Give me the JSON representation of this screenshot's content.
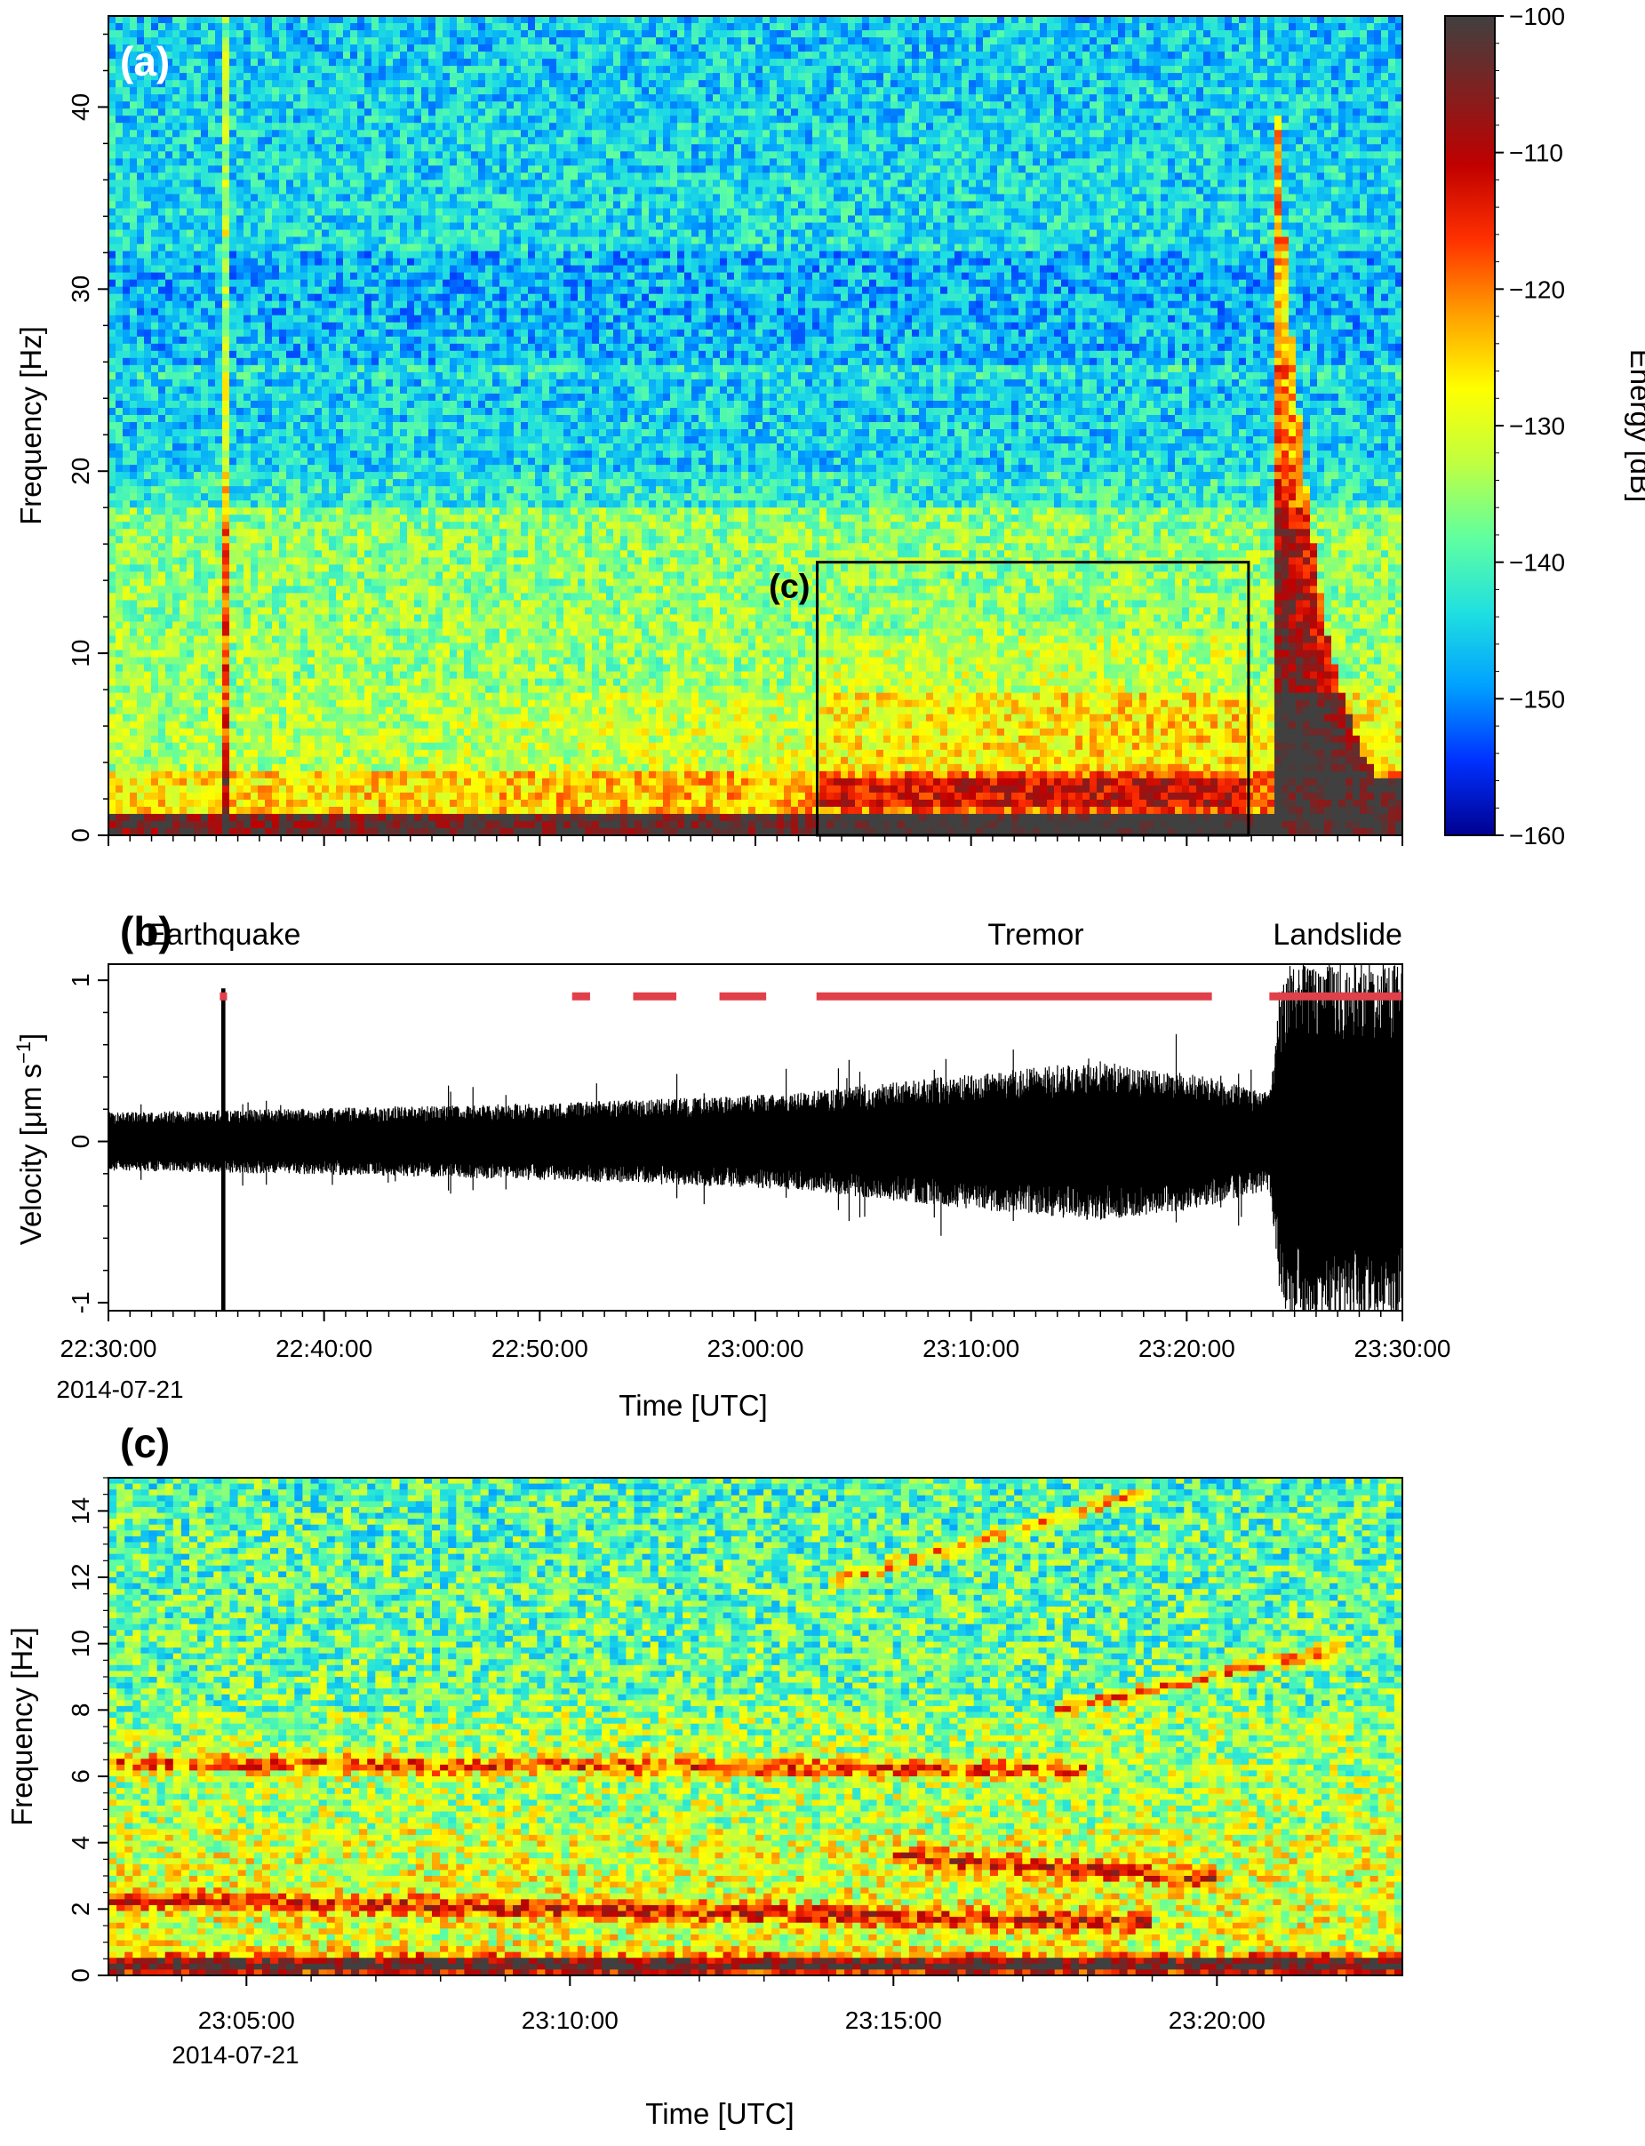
{
  "chart_data": [
    {
      "panel_label": "(a)",
      "type": "heatmap",
      "ylabel": "Frequency [Hz]",
      "ylim": [
        0,
        45
      ],
      "y_ticks": [
        "0",
        "10",
        "20",
        "30",
        "40"
      ],
      "xlim": [
        "22:30:00",
        "23:30:00"
      ],
      "colorbar": {
        "label": "Energy [dB]",
        "range": [
          -160,
          -100
        ],
        "ticks": [
          "−100",
          "−110",
          "−120",
          "−130",
          "−140",
          "−150",
          "−160"
        ],
        "colormap": [
          "#00008f",
          "#0030ff",
          "#00a0ff",
          "#20e0e0",
          "#60ff9f",
          "#c0ff40",
          "#ffff00",
          "#ff9f00",
          "#ff3000",
          "#c00000",
          "#802020",
          "#404040"
        ]
      },
      "inset_box": {
        "label": "(c)",
        "x_start": "23:02:52",
        "x_end": "23:22:52",
        "y_range": [
          0,
          15
        ]
      },
      "features": [
        {
          "kind": "vertical-line",
          "time": "22:35:20"
        },
        {
          "kind": "high-energy-burst",
          "time_start": "23:24:00",
          "time_end": "23:30:00"
        }
      ]
    },
    {
      "panel_label": "(b)",
      "type": "line",
      "ylabel": "Velocity [μm s",
      "ylabel_sup": "−1",
      "ylabel_close": "]",
      "ylim": [
        -1.05,
        1.1
      ],
      "y_ticks": [
        "1",
        "0",
        "-1"
      ],
      "xlabel": "Time [UTC]",
      "x_ticks": [
        "22:30:00",
        "22:40:00",
        "22:50:00",
        "23:00:00",
        "23:10:00",
        "23:20:00",
        "23:30:00"
      ],
      "date_label": "2014-07-21",
      "annotations": [
        {
          "text": "Earthquake",
          "time": "22:35:20"
        },
        {
          "text": "Tremor",
          "time": "23:13:00"
        },
        {
          "text": "Landslide",
          "time": "23:27:00"
        }
      ],
      "detection_segments": [
        {
          "start": "22:35:10",
          "end": "22:35:30",
          "y": 0.9
        },
        {
          "start": "22:51:30",
          "end": "22:52:20",
          "y": 0.9
        },
        {
          "start": "22:54:20",
          "end": "22:56:20",
          "y": 0.9
        },
        {
          "start": "22:58:20",
          "end": "23:00:30",
          "y": 0.9
        },
        {
          "start": "23:02:50",
          "end": "23:21:10",
          "y": 0.9
        },
        {
          "start": "23:23:50",
          "end": "23:30:00",
          "y": 0.9
        }
      ],
      "detection_color": "#e0404a",
      "amplitude_envelope": [
        {
          "time": "22:30:00",
          "amp": 0.18
        },
        {
          "time": "22:45:00",
          "amp": 0.22
        },
        {
          "time": "22:55:00",
          "amp": 0.26
        },
        {
          "time": "23:02:00",
          "amp": 0.3
        },
        {
          "time": "23:10:00",
          "amp": 0.42
        },
        {
          "time": "23:16:00",
          "amp": 0.5
        },
        {
          "time": "23:21:00",
          "amp": 0.4
        },
        {
          "time": "23:23:50",
          "amp": 0.3
        },
        {
          "time": "23:24:30",
          "amp": 1.1
        }
      ],
      "earthquake_peak": {
        "time": "22:35:20",
        "min": -1.05,
        "max": 0.95
      }
    },
    {
      "panel_label": "(c)",
      "type": "heatmap",
      "ylabel": "Frequency [Hz]",
      "ylim": [
        0,
        15
      ],
      "y_ticks": [
        "0",
        "2",
        "4",
        "6",
        "8",
        "10",
        "12",
        "14"
      ],
      "xlabel": "Time [UTC]",
      "xlim": [
        "23:02:52",
        "23:22:52"
      ],
      "x_ticks": [
        "23:05:00",
        "23:10:00",
        "23:15:00",
        "23:20:00"
      ],
      "date_label": "2014-07-21",
      "features": [
        {
          "kind": "gliding-line",
          "time_start": "23:14:00",
          "time_end": "23:19:00",
          "f_start": 11.8,
          "f_end": 14.6
        },
        {
          "kind": "gliding-line",
          "time_start": "23:17:30",
          "time_end": "23:22:00",
          "f_start": 8.0,
          "f_end": 9.9
        },
        {
          "kind": "band",
          "time_start": "23:02:52",
          "time_end": "23:19:00",
          "f_start": 2.3,
          "f_end": 1.6
        },
        {
          "kind": "band",
          "time_start": "23:15:00",
          "time_end": "23:20:00",
          "f_start": 3.6,
          "f_end": 2.9
        },
        {
          "kind": "band",
          "time_start": "23:02:52",
          "time_end": "23:18:00",
          "f_start": 6.4,
          "f_end": 6.2
        },
        {
          "kind": "band",
          "time_start": "23:02:52",
          "time_end": "23:22:52",
          "f_start": 0.3,
          "f_end": 0.3
        }
      ]
    }
  ]
}
